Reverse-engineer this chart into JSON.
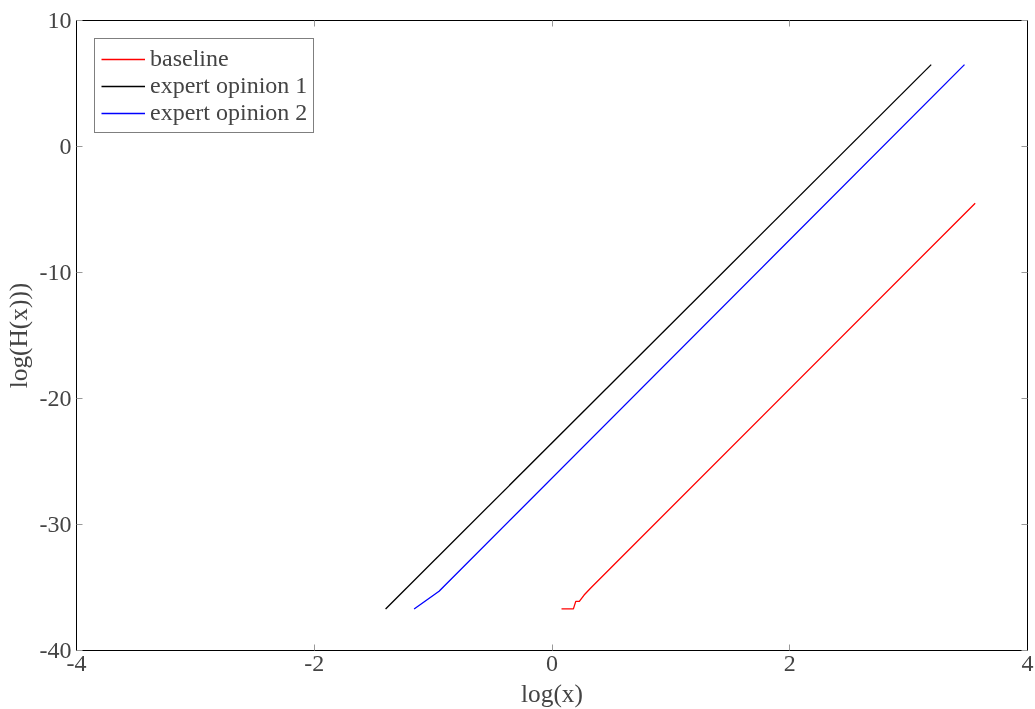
{
  "chart_data": {
    "type": "line",
    "xlabel": "log(x)",
    "ylabel": "log(H(x)))",
    "xlim": [
      -4,
      4
    ],
    "ylim": [
      -40,
      10
    ],
    "xticks": [
      -4,
      -2,
      0,
      2,
      4
    ],
    "yticks": [
      -40,
      -30,
      -20,
      -10,
      0,
      10
    ],
    "grid": false,
    "legend": "top left",
    "line_style": "solid",
    "marker": "none",
    "series": [
      {
        "name": "baseline",
        "color": "#ff0000",
        "x": [
          0.08,
          0.18,
          0.2,
          0.23,
          0.27,
          0.33,
          3.56
        ],
        "values": [
          -36.7,
          -36.7,
          -36.1,
          -36.1,
          -35.6,
          -35.0,
          -4.5
        ]
      },
      {
        "name": "expert opinion 1",
        "color": "#000000",
        "x": [
          -1.4,
          3.19
        ],
        "values": [
          -36.7,
          6.5
        ]
      },
      {
        "name": "expert opinion 2",
        "color": "#0000ff",
        "x": [
          -1.16,
          -0.95,
          3.47
        ],
        "values": [
          -36.7,
          -35.3,
          6.5
        ]
      }
    ]
  }
}
